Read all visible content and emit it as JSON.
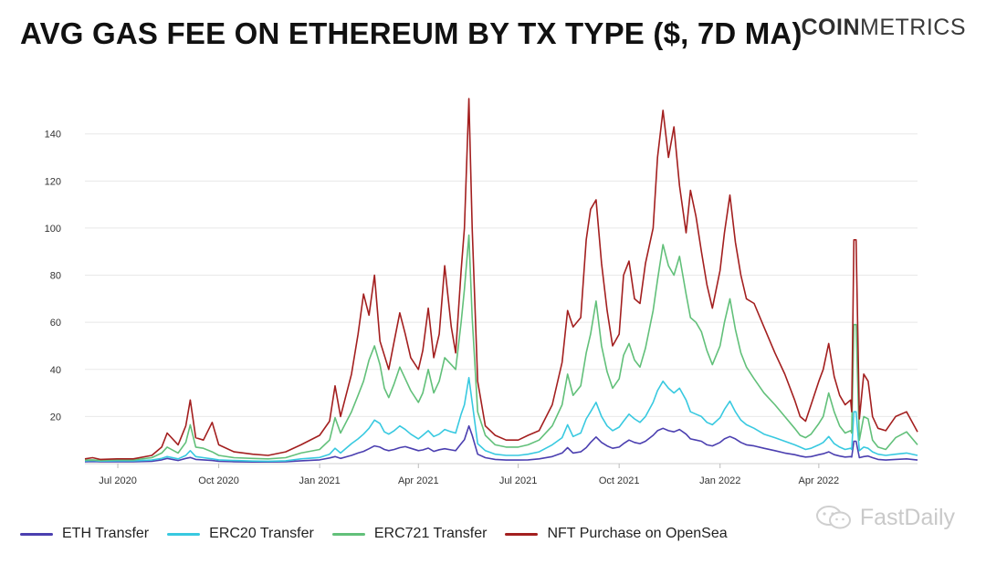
{
  "header": {
    "title": "AVG GAS FEE ON ETHEREUM BY TX TYPE ($, 7D MA)",
    "brand_bold": "COIN",
    "brand_light": "METRICS"
  },
  "watermark": {
    "text": "FastDaily",
    "icon": "wechat-icon"
  },
  "colors": {
    "eth": "#4b3fb0",
    "erc20": "#38c9e0",
    "erc721": "#62c07a",
    "nft": "#a31f1f",
    "grid": "#e8e8e8",
    "axis_text": "#333333"
  },
  "legend": [
    {
      "label": "ETH Transfer",
      "key": "eth"
    },
    {
      "label": "ERC20 Transfer",
      "key": "erc20"
    },
    {
      "label": "ERC721 Transfer",
      "key": "erc721"
    },
    {
      "label": "NFT Purchase on OpenSea",
      "key": "nft"
    }
  ],
  "chart_data": {
    "type": "line",
    "title": "AVG GAS FEE ON ETHEREUM BY TX TYPE ($, 7D MA)",
    "xlabel": "",
    "ylabel": "",
    "ylim": [
      0,
      155
    ],
    "xlim": [
      "2020-06-01",
      "2022-06-30"
    ],
    "yticks": [
      20,
      40,
      60,
      80,
      100,
      120,
      140
    ],
    "xticks": [
      {
        "date": "2020-07-01",
        "label": "Jul 2020"
      },
      {
        "date": "2020-10-01",
        "label": "Oct 2020"
      },
      {
        "date": "2021-01-01",
        "label": "Jan 2021"
      },
      {
        "date": "2021-04-01",
        "label": "Apr 2021"
      },
      {
        "date": "2021-07-01",
        "label": "Jul 2021"
      },
      {
        "date": "2021-10-01",
        "label": "Oct 2021"
      },
      {
        "date": "2022-01-01",
        "label": "Jan 2022"
      },
      {
        "date": "2022-04-01",
        "label": "Apr 2022"
      }
    ],
    "grid": true,
    "legend_position": "bottom",
    "x": [
      "2020-06-01",
      "2020-06-08",
      "2020-06-15",
      "2020-07-01",
      "2020-07-15",
      "2020-08-01",
      "2020-08-10",
      "2020-08-15",
      "2020-08-25",
      "2020-09-01",
      "2020-09-05",
      "2020-09-10",
      "2020-09-17",
      "2020-09-25",
      "2020-10-01",
      "2020-10-15",
      "2020-11-01",
      "2020-11-15",
      "2020-12-01",
      "2020-12-15",
      "2021-01-01",
      "2021-01-10",
      "2021-01-15",
      "2021-01-20",
      "2021-01-30",
      "2021-02-05",
      "2021-02-10",
      "2021-02-15",
      "2021-02-20",
      "2021-02-25",
      "2021-03-01",
      "2021-03-05",
      "2021-03-10",
      "2021-03-15",
      "2021-03-20",
      "2021-03-25",
      "2021-04-01",
      "2021-04-05",
      "2021-04-10",
      "2021-04-15",
      "2021-04-20",
      "2021-04-25",
      "2021-05-01",
      "2021-05-05",
      "2021-05-10",
      "2021-05-13",
      "2021-05-17",
      "2021-05-20",
      "2021-05-25",
      "2021-06-01",
      "2021-06-10",
      "2021-06-20",
      "2021-07-01",
      "2021-07-10",
      "2021-07-20",
      "2021-08-01",
      "2021-08-10",
      "2021-08-15",
      "2021-08-20",
      "2021-08-27",
      "2021-09-01",
      "2021-09-05",
      "2021-09-10",
      "2021-09-15",
      "2021-09-20",
      "2021-09-25",
      "2021-10-01",
      "2021-10-05",
      "2021-10-10",
      "2021-10-15",
      "2021-10-20",
      "2021-10-25",
      "2021-11-01",
      "2021-11-05",
      "2021-11-10",
      "2021-11-15",
      "2021-11-20",
      "2021-11-25",
      "2021-12-01",
      "2021-12-05",
      "2021-12-10",
      "2021-12-15",
      "2021-12-20",
      "2021-12-25",
      "2022-01-01",
      "2022-01-05",
      "2022-01-10",
      "2022-01-15",
      "2022-01-20",
      "2022-01-25",
      "2022-02-01",
      "2022-02-10",
      "2022-02-20",
      "2022-03-01",
      "2022-03-10",
      "2022-03-15",
      "2022-03-20",
      "2022-03-25",
      "2022-04-01",
      "2022-04-05",
      "2022-04-10",
      "2022-04-15",
      "2022-04-20",
      "2022-04-25",
      "2022-04-30",
      "2022-05-01",
      "2022-05-03",
      "2022-05-05",
      "2022-05-08",
      "2022-05-12",
      "2022-05-16",
      "2022-05-20",
      "2022-05-25",
      "2022-06-01",
      "2022-06-10",
      "2022-06-20",
      "2022-06-30"
    ],
    "series": [
      {
        "name": "ETH Transfer",
        "key": "eth",
        "values": [
          0.8,
          0.9,
          0.8,
          0.8,
          0.8,
          1.0,
          1.6,
          2.2,
          1.3,
          2.2,
          2.6,
          1.8,
          1.6,
          1.3,
          1.0,
          0.8,
          0.7,
          0.7,
          0.8,
          1.2,
          1.6,
          2.4,
          3.0,
          2.2,
          3.5,
          4.5,
          5.2,
          6.3,
          7.5,
          7.0,
          6.0,
          5.5,
          6.0,
          6.8,
          7.2,
          6.5,
          5.5,
          5.8,
          6.6,
          5.2,
          5.9,
          6.3,
          5.8,
          5.5,
          8.5,
          10.2,
          16.0,
          12.0,
          4.0,
          2.5,
          1.8,
          1.5,
          1.5,
          1.6,
          2.0,
          3.0,
          4.5,
          6.8,
          4.5,
          5.0,
          6.8,
          9.0,
          11.3,
          9.0,
          7.5,
          6.5,
          7.0,
          8.5,
          10.0,
          9.0,
          8.5,
          9.5,
          12.0,
          14.0,
          15.0,
          14.0,
          13.5,
          14.5,
          12.5,
          10.5,
          10.0,
          9.5,
          8.0,
          7.5,
          9.0,
          10.5,
          11.5,
          10.5,
          9.0,
          8.0,
          7.5,
          6.5,
          5.5,
          4.5,
          3.8,
          3.2,
          2.8,
          3.0,
          3.8,
          4.2,
          5.0,
          3.8,
          3.2,
          2.8,
          3.0,
          2.8,
          9.5,
          9.5,
          2.5,
          3.0,
          3.2,
          2.5,
          1.8,
          1.5,
          1.8,
          2.0,
          1.5
        ]
      },
      {
        "name": "ERC20 Transfer",
        "key": "erc20",
        "values": [
          1.2,
          1.3,
          1.1,
          1.2,
          1.2,
          1.5,
          2.2,
          3.0,
          2.0,
          3.5,
          5.5,
          3.0,
          2.5,
          2.0,
          1.6,
          1.3,
          1.1,
          1.0,
          1.2,
          2.0,
          2.6,
          4.0,
          6.5,
          4.5,
          8.5,
          10.5,
          12.5,
          15.0,
          18.5,
          17.0,
          13.5,
          12.5,
          14.0,
          16.0,
          14.5,
          12.5,
          10.5,
          12.0,
          14.0,
          11.5,
          12.5,
          14.5,
          13.5,
          13.0,
          21.0,
          25.0,
          36.5,
          26.0,
          8.5,
          5.5,
          4.0,
          3.5,
          3.5,
          4.0,
          5.0,
          8.0,
          11.0,
          16.5,
          11.5,
          13.0,
          19.0,
          22.0,
          26.0,
          20.0,
          16.0,
          14.0,
          15.5,
          18.0,
          21.0,
          19.0,
          17.5,
          20.0,
          26.0,
          31.0,
          35.0,
          32.0,
          30.0,
          32.0,
          27.0,
          22.0,
          21.0,
          20.0,
          17.5,
          16.5,
          19.5,
          23.0,
          26.5,
          22.0,
          18.5,
          16.5,
          15.0,
          12.5,
          11.0,
          9.5,
          8.0,
          7.0,
          6.0,
          6.5,
          8.0,
          9.0,
          11.5,
          8.5,
          7.0,
          6.0,
          6.5,
          6.0,
          22.0,
          22.0,
          5.5,
          7.0,
          6.5,
          5.0,
          4.0,
          3.5,
          4.0,
          4.5,
          3.5
        ]
      },
      {
        "name": "ERC721 Transfer",
        "key": "erc721",
        "values": [
          1.5,
          1.6,
          1.4,
          1.6,
          1.6,
          2.5,
          4.5,
          7.0,
          4.5,
          9.0,
          16.5,
          7.0,
          6.5,
          5.0,
          3.5,
          2.5,
          2.2,
          2.0,
          2.5,
          4.5,
          6.0,
          10.0,
          19.5,
          13.0,
          22.0,
          29.0,
          35.0,
          44.0,
          50.0,
          42.0,
          32.0,
          28.0,
          34.0,
          41.0,
          36.0,
          31.0,
          26.0,
          30.0,
          40.0,
          30.0,
          35.0,
          45.0,
          42.0,
          40.0,
          60.0,
          74.0,
          97.0,
          62.0,
          22.0,
          12.0,
          8.0,
          7.0,
          7.0,
          8.0,
          10.0,
          16.0,
          25.0,
          38.0,
          29.0,
          33.0,
          47.0,
          55.0,
          69.0,
          50.0,
          39.0,
          32.0,
          36.0,
          46.0,
          51.0,
          44.0,
          41.0,
          49.0,
          65.0,
          78.0,
          93.0,
          84.0,
          80.0,
          88.0,
          72.0,
          62.0,
          60.0,
          56.0,
          48.0,
          42.0,
          50.0,
          60.0,
          70.0,
          57.0,
          47.0,
          41.0,
          36.0,
          30.0,
          25.0,
          20.0,
          15.0,
          12.0,
          11.0,
          12.5,
          17.0,
          20.0,
          30.0,
          22.0,
          16.0,
          13.0,
          14.0,
          13.0,
          59.0,
          59.0,
          10.0,
          20.0,
          19.0,
          10.0,
          7.0,
          6.0,
          11.0,
          13.5,
          8.0
        ]
      },
      {
        "name": "NFT Purchase on OpenSea",
        "key": "nft",
        "values": [
          2.0,
          2.5,
          1.8,
          2.0,
          2.0,
          3.5,
          7.0,
          13.0,
          8.0,
          16.0,
          27.0,
          11.0,
          10.0,
          17.5,
          8.0,
          5.0,
          4.0,
          3.5,
          5.0,
          8.0,
          12.0,
          18.0,
          33.0,
          20.0,
          38.0,
          55.0,
          72.0,
          63.0,
          80.0,
          52.0,
          46.0,
          40.0,
          52.0,
          64.0,
          55.0,
          45.0,
          40.0,
          48.0,
          66.0,
          45.0,
          55.0,
          84.0,
          58.0,
          47.0,
          82.0,
          100.0,
          155.0,
          100.0,
          35.0,
          16.0,
          12.0,
          10.0,
          10.0,
          12.0,
          14.0,
          25.0,
          43.0,
          65.0,
          58.0,
          62.0,
          95.0,
          108.0,
          112.0,
          85.0,
          65.0,
          50.0,
          55.0,
          80.0,
          86.0,
          70.0,
          68.0,
          85.0,
          100.0,
          130.0,
          150.0,
          130.0,
          143.0,
          118.0,
          98.0,
          116.0,
          105.0,
          90.0,
          76.0,
          66.0,
          82.0,
          98.0,
          114.0,
          94.0,
          80.0,
          70.0,
          68.0,
          58.0,
          47.0,
          38.0,
          27.0,
          20.0,
          18.0,
          25.0,
          35.0,
          40.0,
          51.0,
          37.0,
          29.0,
          25.0,
          27.0,
          22.0,
          95.0,
          95.0,
          19.0,
          38.0,
          35.0,
          20.0,
          15.0,
          14.0,
          20.0,
          22.0,
          13.5
        ]
      }
    ]
  }
}
